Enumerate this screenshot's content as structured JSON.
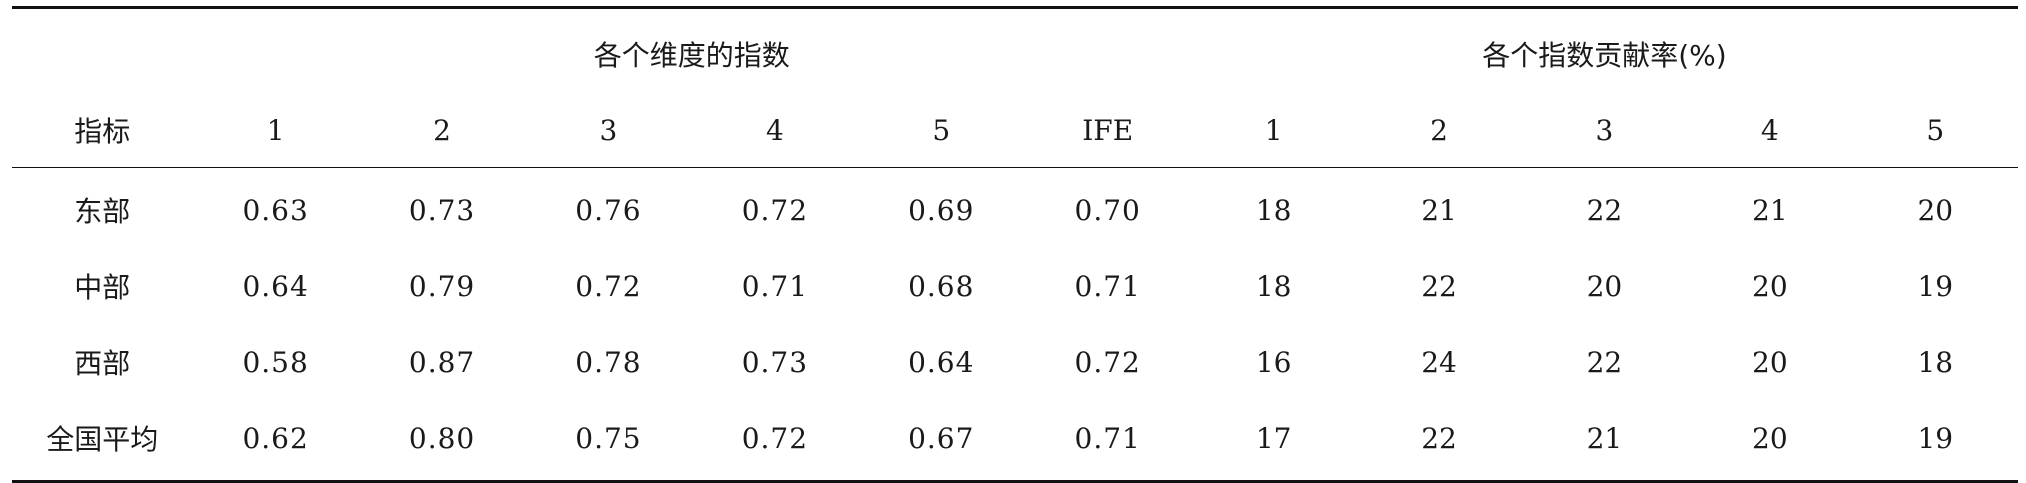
{
  "header": {
    "group_index": "各个维度的指数",
    "group_rate": "各个指数贡献率(%)",
    "label_col": "指标",
    "index_cols": [
      "1",
      "2",
      "3",
      "4",
      "5",
      "IFE"
    ],
    "rate_cols": [
      "1",
      "2",
      "3",
      "4",
      "5"
    ]
  },
  "rows": [
    {
      "label": "东部",
      "indices": [
        "0.63",
        "0.73",
        "0.76",
        "0.72",
        "0.69",
        "0.70"
      ],
      "rates": [
        "18",
        "21",
        "22",
        "21",
        "20"
      ]
    },
    {
      "label": "中部",
      "indices": [
        "0.64",
        "0.79",
        "0.72",
        "0.71",
        "0.68",
        "0.71"
      ],
      "rates": [
        "18",
        "22",
        "20",
        "20",
        "19"
      ]
    },
    {
      "label": "西部",
      "indices": [
        "0.58",
        "0.87",
        "0.78",
        "0.73",
        "0.64",
        "0.72"
      ],
      "rates": [
        "16",
        "24",
        "22",
        "20",
        "18"
      ]
    },
    {
      "label": "全国平均",
      "indices": [
        "0.62",
        "0.80",
        "0.75",
        "0.72",
        "0.67",
        "0.71"
      ],
      "rates": [
        "17",
        "22",
        "21",
        "20",
        "19"
      ]
    }
  ]
}
